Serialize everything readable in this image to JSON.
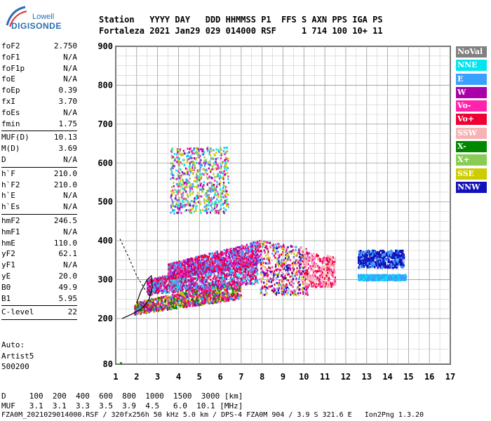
{
  "logo": {
    "line1": "Lowell",
    "line2": "DIGISONDE"
  },
  "header": {
    "line1": "Station   YYYY DAY   DDD HHMMSS P1  FFS S AXN PPS IGA PS",
    "line2": "Fortaleza 2021 Jan29 029 014000 RSF     1 714 100 10+ 11"
  },
  "params": [
    [
      {
        "name": "foF2",
        "value": "2.750"
      },
      {
        "name": "foF1",
        "value": "N/A"
      },
      {
        "name": "foF1p",
        "value": "N/A"
      },
      {
        "name": "foE",
        "value": "N/A"
      },
      {
        "name": "foEp",
        "value": "0.39"
      },
      {
        "name": "fxI",
        "value": "3.70"
      },
      {
        "name": "foEs",
        "value": "N/A"
      },
      {
        "name": "fmin",
        "value": "1.75"
      }
    ],
    [
      {
        "name": "MUF(D)",
        "value": "10.13"
      },
      {
        "name": "M(D)",
        "value": "3.69"
      },
      {
        "name": "D",
        "value": "N/A"
      }
    ],
    [
      {
        "name": "h`F",
        "value": "210.0"
      },
      {
        "name": "h`F2",
        "value": "210.0"
      },
      {
        "name": "h`E",
        "value": "N/A"
      },
      {
        "name": "h`Es",
        "value": "N/A"
      }
    ],
    [
      {
        "name": "hmF2",
        "value": "246.5"
      },
      {
        "name": "hmF1",
        "value": "N/A"
      },
      {
        "name": "hmE",
        "value": "110.0"
      },
      {
        "name": "yF2",
        "value": "62.1"
      },
      {
        "name": "yF1",
        "value": "N/A"
      },
      {
        "name": "yE",
        "value": "20.0"
      },
      {
        "name": "B0",
        "value": "49.9"
      },
      {
        "name": "B1",
        "value": "5.95"
      }
    ],
    [
      {
        "name": "C-level",
        "value": "22"
      }
    ]
  ],
  "auto": {
    "line1": "Auto:",
    "line2": "Artist5",
    "line3": "500200"
  },
  "legend": [
    {
      "label": "NoVal",
      "color": "#808080"
    },
    {
      "label": "NNE",
      "color": "#00e5ee"
    },
    {
      "label": "E",
      "color": "#3aa0ff"
    },
    {
      "label": "W",
      "color": "#aa00aa"
    },
    {
      "label": "Vo-",
      "color": "#ff22aa"
    },
    {
      "label": "Vo+",
      "color": "#ee0033"
    },
    {
      "label": "SSW",
      "color": "#f7b3b3"
    },
    {
      "label": "X-",
      "color": "#008800"
    },
    {
      "label": "X+",
      "color": "#88cc55"
    },
    {
      "label": "SSE",
      "color": "#cccc00"
    },
    {
      "label": "NNW",
      "color": "#1111bb"
    }
  ],
  "footer": {
    "d_line": "D     100  200  400  600  800  1000  1500  3000 [km]",
    "muf_line": "MUF   3.1  3.1  3.3  3.5  3.9  4.5   6.0  10.1 [MHz]",
    "file_line": "FZA0M_2021029014000.RSF / 320fx256h 50 kHz 5.0 km / DPS-4 FZA0M 904 / 3.9 S 321.6 E   Ion2Png 1.3.20"
  },
  "chart_data": {
    "type": "scatter",
    "x_ticks": [
      "1",
      "2",
      "3",
      "4",
      "5",
      "6",
      "7",
      "8",
      "9",
      "10",
      "11",
      "12",
      "13",
      "14",
      "15",
      "16",
      "17"
    ],
    "y_ticks": [
      "80",
      "200",
      "300",
      "400",
      "500",
      "600",
      "700",
      "800",
      "900"
    ],
    "xlim": [
      1,
      17
    ],
    "ylim": [
      80,
      900
    ],
    "grid": true,
    "legend_position": "right",
    "regions": [
      {
        "name": "F-trace low",
        "x_start": 1.9,
        "x_end": 7.0,
        "h_start_low": 210,
        "h_start_high": 240,
        "h_end_low": 250,
        "h_end_high": 300,
        "colors": [
          "#cccc00",
          "#aa00aa",
          "#3aa0ff",
          "#ff22aa",
          "#ee0033",
          "#008800"
        ]
      },
      {
        "name": "F-trace mid",
        "x_start": 2.5,
        "x_end": 7.8,
        "h_start_low": 260,
        "h_start_high": 300,
        "h_end_low": 290,
        "h_end_high": 360,
        "colors": [
          "#3aa0ff",
          "#ff22aa",
          "#aa00aa",
          "#ee0033",
          "#00e5ee"
        ]
      },
      {
        "name": "F-trace high",
        "x_start": 3.5,
        "x_end": 7.9,
        "h_start_low": 300,
        "h_start_high": 340,
        "h_end_low": 340,
        "h_end_high": 400,
        "colors": [
          "#3aa0ff",
          "#ff22aa",
          "#aa00aa",
          "#ee0033"
        ]
      },
      {
        "name": "spread 8-10",
        "x_start": 7.9,
        "x_end": 10.2,
        "h_start_low": 260,
        "h_start_high": 400,
        "h_end_low": 260,
        "h_end_high": 380,
        "colors": [
          "#3aa0ff",
          "#f7b3b3",
          "#ff22aa",
          "#aa00aa",
          "#ee0033",
          "#cccc00",
          "#1111bb"
        ]
      },
      {
        "name": "spread 10-11",
        "x_start": 10.0,
        "x_end": 11.5,
        "h_start_low": 280,
        "h_start_high": 370,
        "h_end_low": 280,
        "h_end_high": 360,
        "colors": [
          "#f7b3b3",
          "#ee0033",
          "#ff22aa",
          "#f7b3b3"
        ]
      },
      {
        "name": "upper cloud",
        "x_start": 3.6,
        "x_end": 6.4,
        "h_start_low": 470,
        "h_start_high": 640,
        "h_end_low": 470,
        "h_end_high": 640,
        "colors": [
          "#cccc00",
          "#3aa0ff",
          "#88cc55",
          "#ff22aa",
          "#aa00aa",
          "#00e5ee"
        ]
      },
      {
        "name": "NNW 12.5-15",
        "x_start": 12.6,
        "x_end": 14.8,
        "h_start_low": 330,
        "h_start_high": 375,
        "h_end_low": 330,
        "h_end_high": 375,
        "colors": [
          "#1111bb",
          "#1111bb",
          "#3aa0ff"
        ]
      },
      {
        "name": "E 12.5-15",
        "x_start": 12.6,
        "x_end": 14.9,
        "h_start_low": 298,
        "h_start_high": 312,
        "h_end_low": 298,
        "h_end_high": 312,
        "colors": [
          "#3aa0ff",
          "#3aa0ff",
          "#00e5ee"
        ]
      }
    ],
    "profile_curve": [
      [
        1.3,
        200
      ],
      [
        1.8,
        212
      ],
      [
        2.3,
        228
      ],
      [
        2.6,
        250
      ],
      [
        2.75,
        282
      ],
      [
        2.7,
        310
      ],
      [
        2.5,
        300
      ],
      [
        2.2,
        270
      ],
      [
        2.0,
        240
      ]
    ],
    "dashed_curve": [
      [
        1.2,
        405
      ],
      [
        1.6,
        360
      ],
      [
        2.0,
        310
      ],
      [
        2.4,
        275
      ],
      [
        2.75,
        250
      ]
    ]
  }
}
